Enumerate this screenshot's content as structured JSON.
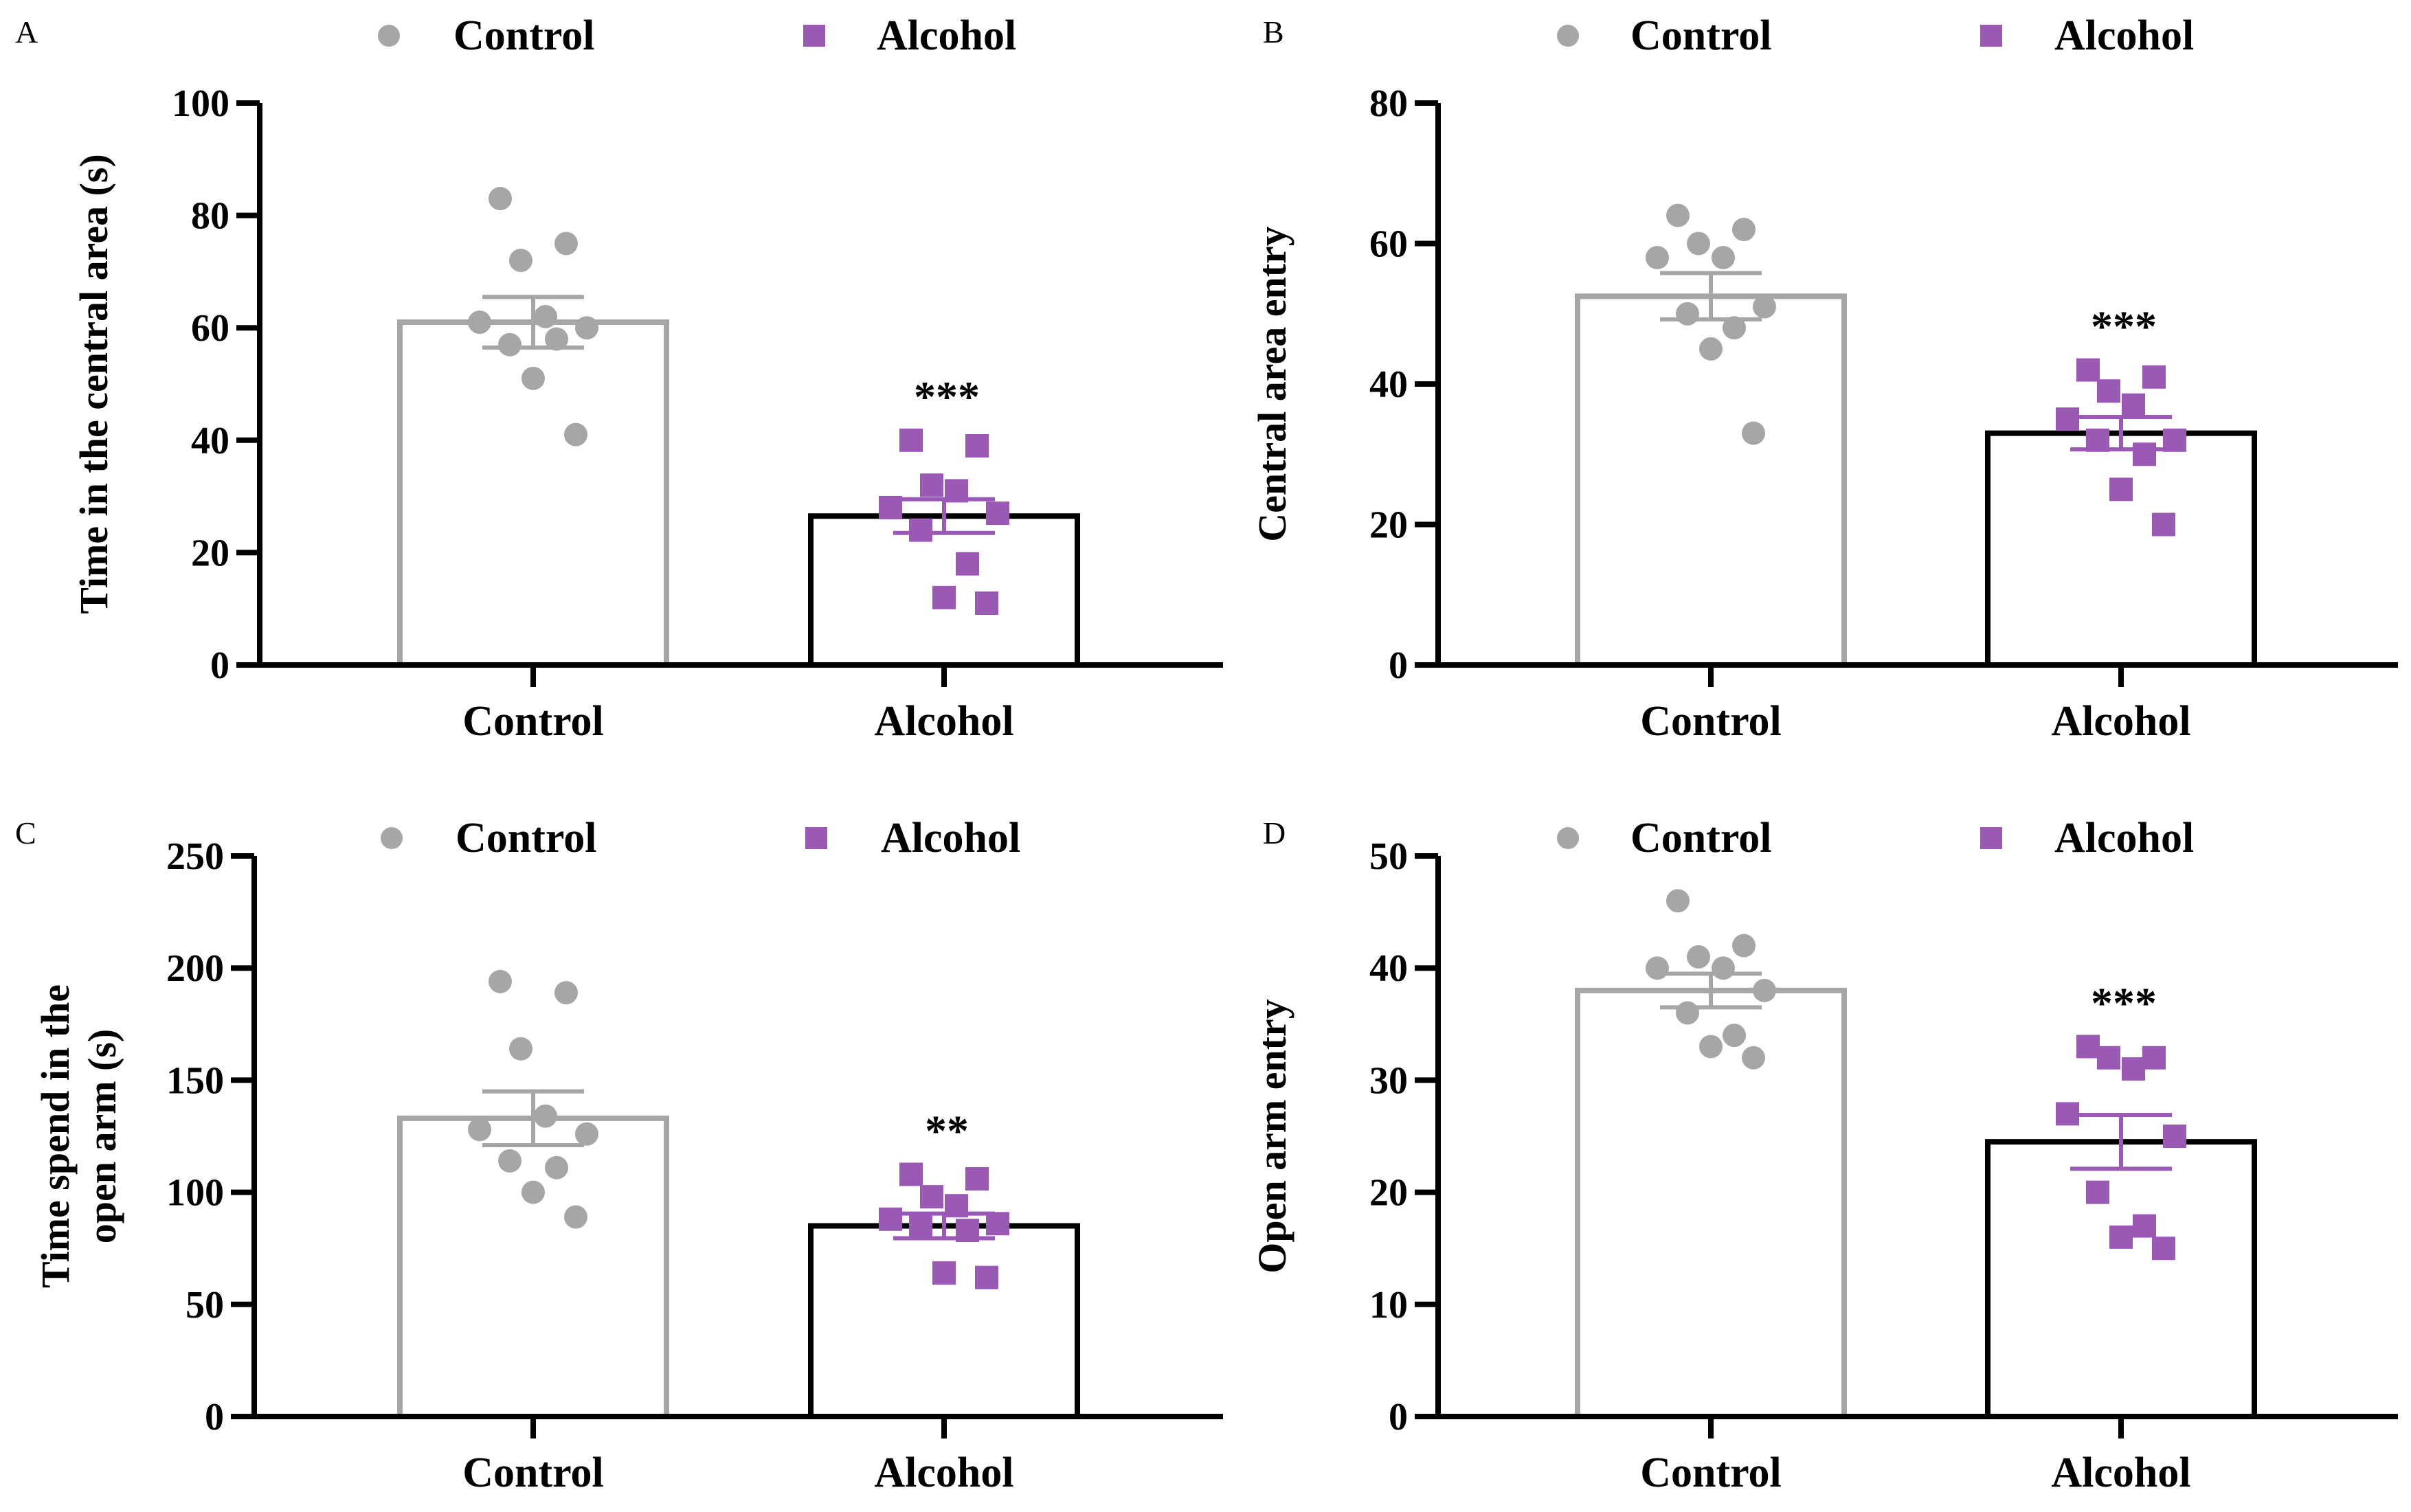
{
  "legend": {
    "control_label": "Control",
    "alcohol_label": "Alcohol"
  },
  "colors": {
    "control": "#a6a6a6",
    "alcohol": "#9b59b6",
    "alcohol_bar_outline": "#000000",
    "axis": "#000000"
  },
  "chart_data": [
    {
      "panel": "A",
      "type": "bar",
      "ylabel": "Time in the central area (s)",
      "ylim": [
        0,
        100
      ],
      "yticks": [
        "0",
        "20",
        "40",
        "60",
        "80",
        "100"
      ],
      "categories": [
        "Control",
        "Alcohol"
      ],
      "means": [
        61,
        26.5
      ],
      "sem": [
        4.5,
        3
      ],
      "significance": "***",
      "points": {
        "Control": [
          83,
          75,
          72,
          62,
          61,
          60,
          57,
          58,
          51,
          41
        ],
        "Alcohol": [
          40,
          39,
          32,
          31,
          28,
          27,
          24,
          18,
          12,
          11
        ]
      }
    },
    {
      "panel": "B",
      "type": "bar",
      "ylabel": "Central area entry",
      "ylim": [
        0,
        80
      ],
      "yticks": [
        "0",
        "20",
        "40",
        "60",
        "80"
      ],
      "categories": [
        "Control",
        "Alcohol"
      ],
      "means": [
        52.5,
        33
      ],
      "sem": [
        3.3,
        2.3
      ],
      "significance": "***",
      "points": {
        "Control": [
          64,
          62,
          60,
          58,
          58,
          51,
          50,
          48,
          45,
          33
        ],
        "Alcohol": [
          42,
          41,
          39,
          37,
          35,
          32,
          32,
          30,
          25,
          20
        ]
      }
    },
    {
      "panel": "C",
      "type": "bar",
      "ylabel_lines": [
        "Time spend in the",
        "open arm (s)"
      ],
      "ylim": [
        0,
        250
      ],
      "yticks": [
        "0",
        "50",
        "100",
        "150",
        "200",
        "250"
      ],
      "categories": [
        "Control",
        "Alcohol"
      ],
      "means": [
        133,
        85
      ],
      "sem": [
        12,
        5.5
      ],
      "significance": "**",
      "points": {
        "Control": [
          194,
          189,
          164,
          134,
          128,
          126,
          114,
          111,
          100,
          89
        ],
        "Alcohol": [
          108,
          106,
          98,
          94,
          88,
          86,
          85,
          83,
          64,
          62
        ]
      }
    },
    {
      "panel": "D",
      "type": "bar",
      "ylabel": "Open arm entry",
      "ylim": [
        0,
        50
      ],
      "yticks": [
        "0",
        "10",
        "20",
        "30",
        "40",
        "50"
      ],
      "categories": [
        "Control",
        "Alcohol"
      ],
      "means": [
        38,
        24.5
      ],
      "sem": [
        1.5,
        2.4
      ],
      "significance": "***",
      "points": {
        "Control": [
          46,
          42,
          41,
          40,
          40,
          38,
          36,
          34,
          33,
          32
        ],
        "Alcohol": [
          33,
          32,
          32,
          31,
          27,
          25,
          20,
          17,
          16,
          15
        ]
      }
    }
  ]
}
